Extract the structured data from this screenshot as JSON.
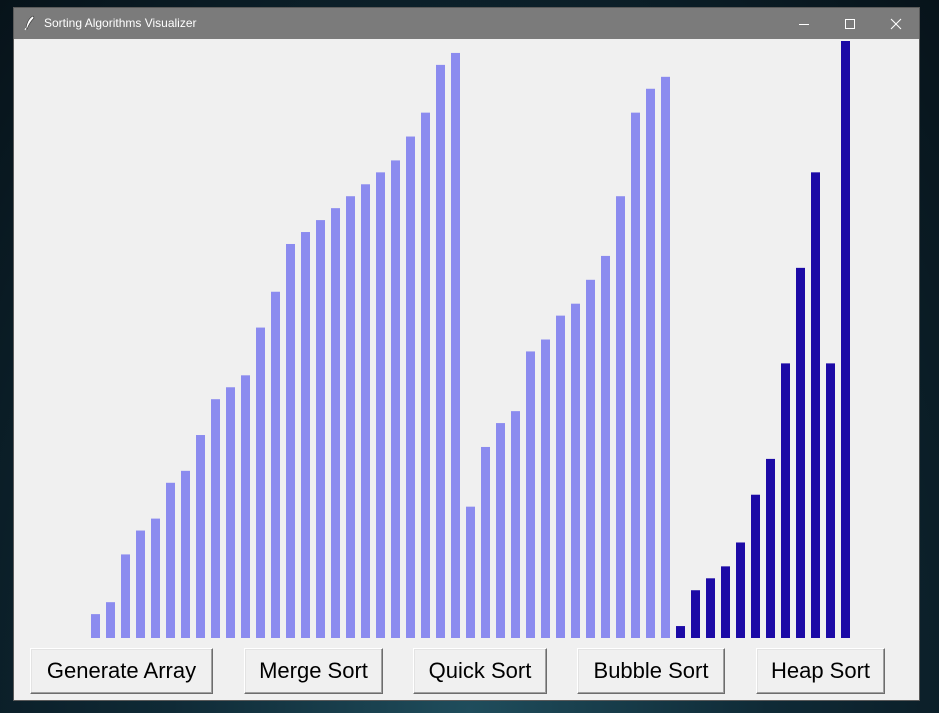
{
  "window": {
    "title": "Sorting Algorithms Visualizer",
    "controls": [
      "minimize",
      "maximize",
      "close"
    ]
  },
  "buttons": {
    "generate": "Generate Array",
    "merge": "Merge Sort",
    "quick": "Quick Sort",
    "bubble": "Bubble Sort",
    "heap": "Heap Sort"
  },
  "colors": {
    "bar_default": "#8b8bef",
    "bar_active": "#1c0aa6"
  },
  "chart_data": {
    "type": "bar",
    "ylim": [
      0,
      500
    ],
    "values": [
      20,
      30,
      70,
      90,
      100,
      130,
      140,
      170,
      200,
      210,
      220,
      260,
      290,
      330,
      340,
      350,
      360,
      370,
      380,
      390,
      400,
      420,
      440,
      480,
      490,
      110,
      160,
      180,
      190,
      240,
      250,
      270,
      280,
      300,
      320,
      370,
      440,
      460,
      470,
      10,
      40,
      50,
      60,
      80,
      120,
      150,
      230,
      310,
      390,
      230,
      500
    ],
    "active_from_index": 39
  }
}
